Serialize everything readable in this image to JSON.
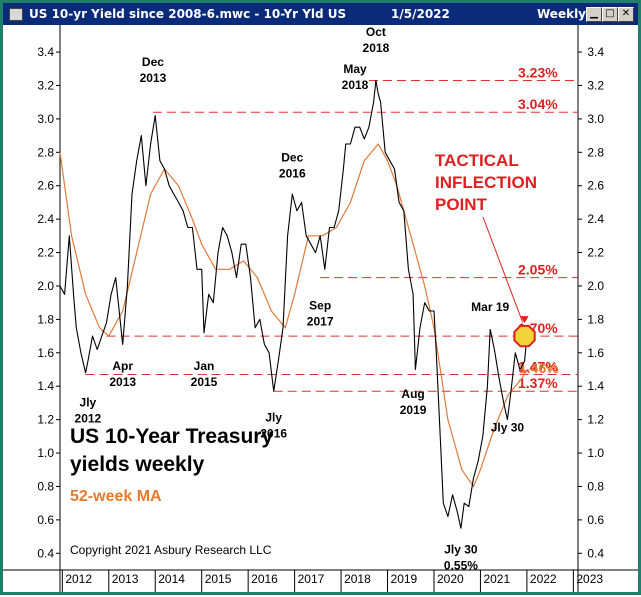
{
  "window": {
    "title": "US 10-yr Yield since 2008-6.mwc - 10-Yr Yld US",
    "date": "1/5/2022",
    "period": "Weekly"
  },
  "colors": {
    "price_line": "#000000",
    "ma_line": "#e07a3a",
    "reference_line": "#e03030",
    "annotation_red": "#e02020",
    "annotation_orange": "#e87a2e",
    "marker_fill": "#f4d43a",
    "titlebar": "#0a2a7a",
    "frame": "#1f7f6a"
  },
  "chart_data": {
    "type": "line",
    "x_ticks": [
      "2012",
      "2013",
      "2014",
      "2015",
      "2016",
      "2017",
      "2018",
      "2019",
      "2020",
      "2021",
      "2022",
      "2023"
    ],
    "y_ticks": [
      "0.4",
      "0.6",
      "0.8",
      "1.0",
      "1.2",
      "1.4",
      "1.6",
      "1.8",
      "2.0",
      "2.2",
      "2.4",
      "2.6",
      "2.8",
      "3.0",
      "3.2",
      "3.4"
    ],
    "xlim": [
      2011.95,
      2023.1
    ],
    "ylim": [
      0.3,
      3.55
    ],
    "grid": false,
    "series": [
      {
        "kind": "price",
        "x": [
          2011.95,
          2012.05,
          2012.15,
          2012.25,
          2012.3,
          2012.4,
          2012.5,
          2012.55,
          2012.65,
          2012.75,
          2012.85,
          2012.95,
          2013.05,
          2013.15,
          2013.25,
          2013.3,
          2013.4,
          2013.5,
          2013.6,
          2013.7,
          2013.8,
          2013.9,
          2014.0,
          2014.1,
          2014.2,
          2014.3,
          2014.4,
          2014.5,
          2014.6,
          2014.7,
          2014.8,
          2014.9,
          2015.0,
          2015.05,
          2015.15,
          2015.25,
          2015.35,
          2015.45,
          2015.55,
          2015.65,
          2015.75,
          2015.85,
          2015.95,
          2016.05,
          2016.15,
          2016.25,
          2016.35,
          2016.45,
          2016.55,
          2016.65,
          2016.75,
          2016.85,
          2016.95,
          2017.05,
          2017.15,
          2017.25,
          2017.35,
          2017.45,
          2017.55,
          2017.65,
          2017.75,
          2017.85,
          2017.95,
          2018.05,
          2018.1,
          2018.2,
          2018.3,
          2018.4,
          2018.5,
          2018.6,
          2018.7,
          2018.75,
          2018.8,
          2018.85,
          2018.95,
          2019.05,
          2019.15,
          2019.25,
          2019.35,
          2019.45,
          2019.55,
          2019.6,
          2019.7,
          2019.8,
          2019.9,
          2020.0,
          2020.05,
          2020.15,
          2020.2,
          2020.3,
          2020.4,
          2020.5,
          2020.58,
          2020.65,
          2020.75,
          2020.85,
          2020.95,
          2021.05,
          2021.15,
          2021.21,
          2021.3,
          2021.4,
          2021.5,
          2021.58,
          2021.65,
          2021.75,
          2021.85,
          2021.95,
          2022.0
        ],
        "y": [
          2.0,
          1.95,
          2.3,
          1.92,
          1.75,
          1.6,
          1.48,
          1.55,
          1.7,
          1.62,
          1.7,
          1.78,
          1.95,
          2.05,
          1.78,
          1.65,
          2.0,
          2.55,
          2.75,
          2.9,
          2.6,
          2.85,
          3.02,
          2.75,
          2.7,
          2.6,
          2.55,
          2.5,
          2.45,
          2.35,
          2.35,
          2.1,
          2.1,
          1.72,
          1.95,
          1.9,
          2.2,
          2.35,
          2.3,
          2.2,
          2.05,
          2.25,
          2.25,
          2.05,
          1.75,
          1.8,
          1.65,
          1.6,
          1.37,
          1.55,
          1.75,
          2.3,
          2.55,
          2.45,
          2.5,
          2.3,
          2.25,
          2.2,
          2.3,
          2.1,
          2.35,
          2.35,
          2.45,
          2.7,
          2.85,
          2.85,
          2.95,
          2.95,
          2.88,
          2.95,
          3.1,
          3.23,
          3.15,
          3.1,
          2.8,
          2.75,
          2.7,
          2.5,
          2.45,
          2.1,
          1.95,
          1.5,
          1.75,
          1.9,
          1.85,
          1.85,
          1.6,
          1.0,
          0.7,
          0.62,
          0.75,
          0.65,
          0.55,
          0.7,
          0.68,
          0.85,
          0.95,
          1.1,
          1.4,
          1.74,
          1.62,
          1.45,
          1.3,
          1.2,
          1.35,
          1.6,
          1.5,
          1.55,
          1.7
        ]
      },
      {
        "kind": "moving-average",
        "x": [
          2011.95,
          2012.2,
          2012.5,
          2012.8,
          2013.0,
          2013.3,
          2013.6,
          2013.9,
          2014.2,
          2014.5,
          2014.8,
          2015.0,
          2015.3,
          2015.6,
          2015.9,
          2016.2,
          2016.5,
          2016.8,
          2017.0,
          2017.3,
          2017.6,
          2017.9,
          2018.2,
          2018.5,
          2018.8,
          2019.0,
          2019.2,
          2019.5,
          2019.8,
          2020.0,
          2020.3,
          2020.6,
          2020.85,
          2021.0,
          2021.3,
          2021.6,
          2021.9,
          2022.0
        ],
        "y": [
          2.8,
          2.3,
          1.95,
          1.75,
          1.7,
          1.85,
          2.2,
          2.55,
          2.7,
          2.6,
          2.4,
          2.25,
          2.1,
          2.1,
          2.15,
          2.05,
          1.85,
          1.75,
          1.95,
          2.3,
          2.3,
          2.35,
          2.5,
          2.75,
          2.85,
          2.75,
          2.6,
          2.3,
          2.0,
          1.75,
          1.2,
          0.9,
          0.8,
          0.9,
          1.15,
          1.35,
          1.45,
          1.5
        ]
      }
    ],
    "reference_lines": [
      {
        "value": 3.23,
        "label": "3.23%",
        "from": 2018.6
      },
      {
        "value": 3.04,
        "label": "3.04%",
        "from": 2013.95
      },
      {
        "value": 2.05,
        "label": "2.05%",
        "from": 2017.55
      },
      {
        "value": 1.7,
        "label": "1.70%",
        "from": 2012.95
      },
      {
        "value": 1.47,
        "label": "1.47%",
        "from": 2012.5
      },
      {
        "value": 1.37,
        "label": "1.37%",
        "from": 2016.55
      }
    ],
    "ma_level": {
      "value": 1.46,
      "label": "1.46%"
    },
    "marker": {
      "x": 2021.95,
      "y": 1.7
    },
    "annotations": [
      {
        "line1": "Dec",
        "line2": "2013",
        "x": 2013.95,
        "y": 3.22,
        "anchor": "above"
      },
      {
        "line1": "Apr",
        "line2": "2013",
        "x": 2013.3,
        "y": 1.57,
        "anchor": "below"
      },
      {
        "line1": "Jly",
        "line2": "2012",
        "x": 2012.55,
        "y": 1.35,
        "anchor": "below"
      },
      {
        "line1": "Jan",
        "line2": "2015",
        "x": 2015.05,
        "y": 1.57,
        "anchor": "below"
      },
      {
        "line1": "Dec",
        "line2": "2016",
        "x": 2016.95,
        "y": 2.65,
        "anchor": "above"
      },
      {
        "line1": "Jly",
        "line2": "2016",
        "x": 2016.55,
        "y": 1.26,
        "anchor": "below"
      },
      {
        "line1": "Sep",
        "line2": "2017",
        "x": 2017.55,
        "y": 1.93,
        "anchor": "below"
      },
      {
        "line1": "May",
        "line2": "2018",
        "x": 2018.3,
        "y": 3.18,
        "anchor": "above"
      },
      {
        "line1": "Oct",
        "line2": "2018",
        "x": 2018.75,
        "y": 3.4,
        "anchor": "above"
      },
      {
        "line1": "Aug",
        "line2": "2019",
        "x": 2019.55,
        "y": 1.4,
        "anchor": "below"
      },
      {
        "line1": "Mar 19",
        "line2": "",
        "x": 2021.21,
        "y": 1.85,
        "anchor": "above"
      },
      {
        "line1": "Jly 30",
        "line2": "",
        "x": 2021.58,
        "y": 1.2,
        "anchor": "below"
      },
      {
        "line1": "Jly 30",
        "line2": "0.55%",
        "x": 2020.58,
        "y": 0.47,
        "anchor": "below"
      }
    ],
    "callout": {
      "lines": [
        "TACTICAL",
        "INFLECTION",
        "POINT"
      ]
    },
    "title_lines": [
      "US 10-Year Treasury",
      "yields weekly"
    ],
    "subtitle": "52-week MA",
    "copyright": "Copyright 2021 Asbury Research LLC"
  }
}
